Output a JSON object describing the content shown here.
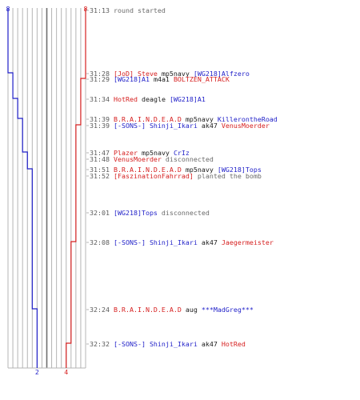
{
  "colors": {
    "team_a": "#1f1fc8",
    "team_b": "#d62020",
    "grid": "#b4b4b4",
    "center": "#6e6e6e",
    "time": "#5a5a5a",
    "neutral": "#6a6a6a",
    "black": "#1a1a1a"
  },
  "chart_data": {
    "type": "line",
    "start_counts": {
      "team_a": "8",
      "team_b": "8"
    },
    "end_counts": {
      "team_a": "2",
      "team_b": "4"
    },
    "team_a_steps": [
      8,
      7,
      6,
      5,
      4,
      3,
      2
    ],
    "team_b_steps": [
      8,
      7,
      6,
      5,
      4
    ],
    "events": [
      {
        "time": "31:13",
        "parts": [
          {
            "t": "round started",
            "c": "neutral"
          }
        ]
      },
      {
        "time": "31:28",
        "team_a_alive": 7,
        "parts": [
          {
            "t": "[JoD] Steve",
            "c": "team_b"
          },
          {
            "t": " mp5navy ",
            "c": "black"
          },
          {
            "t": "[WG218]Alfzero",
            "c": "team_a"
          }
        ]
      },
      {
        "time": "31:29",
        "team_b_alive": 7,
        "parts": [
          {
            "t": "[WG218]A1",
            "c": "team_a"
          },
          {
            "t": " m4a1 ",
            "c": "black"
          },
          {
            "t": "BOLTZEN_ATTACK",
            "c": "team_b"
          }
        ]
      },
      {
        "time": "31:34",
        "team_a_alive": 6,
        "parts": [
          {
            "t": "HotRed",
            "c": "team_b"
          },
          {
            "t": " deagle ",
            "c": "black"
          },
          {
            "t": "[WG218]A1",
            "c": "team_a"
          }
        ]
      },
      {
        "time": "31:39",
        "team_a_alive": 5,
        "parts": [
          {
            "t": "B.R.A.I.N.D.E.A.D",
            "c": "team_b"
          },
          {
            "t": " mp5navy ",
            "c": "black"
          },
          {
            "t": "KillerontheRoad",
            "c": "team_a"
          }
        ]
      },
      {
        "time": "31:39",
        "team_b_alive": 6,
        "parts": [
          {
            "t": "[-SONS-] Shinji_Ikari",
            "c": "team_a"
          },
          {
            "t": " ak47 ",
            "c": "black"
          },
          {
            "t": "VenusMoerder",
            "c": "team_b"
          }
        ]
      },
      {
        "time": "31:47",
        "team_a_alive": 4,
        "parts": [
          {
            "t": "Plazer",
            "c": "team_b"
          },
          {
            "t": " mp5navy ",
            "c": "black"
          },
          {
            "t": "CrIz",
            "c": "team_a"
          }
        ]
      },
      {
        "time": "31:48",
        "parts": [
          {
            "t": "VenusMoerder",
            "c": "team_b"
          },
          {
            "t": " disconnected",
            "c": "neutral"
          }
        ]
      },
      {
        "time": "31:51",
        "team_a_alive": 3,
        "parts": [
          {
            "t": "B.R.A.I.N.D.E.A.D",
            "c": "team_b"
          },
          {
            "t": " mp5navy ",
            "c": "black"
          },
          {
            "t": "[WG218]Tops",
            "c": "team_a"
          }
        ]
      },
      {
        "time": "31:52",
        "parts": [
          {
            "t": "[FaszinationFahrrad]",
            "c": "team_b"
          },
          {
            "t": " planted the bomb",
            "c": "neutral"
          }
        ]
      },
      {
        "time": "32:01",
        "parts": [
          {
            "t": "[WG218]Tops",
            "c": "team_a"
          },
          {
            "t": " disconnected",
            "c": "neutral"
          }
        ]
      },
      {
        "time": "32:08",
        "team_b_alive": 5,
        "parts": [
          {
            "t": "[-SONS-] Shinji_Ikari",
            "c": "team_a"
          },
          {
            "t": " ak47 ",
            "c": "black"
          },
          {
            "t": "Jaegermeister",
            "c": "team_b"
          }
        ]
      },
      {
        "time": "32:24",
        "team_a_alive": 2,
        "parts": [
          {
            "t": "B.R.A.I.N.D.E.A.D",
            "c": "team_b"
          },
          {
            "t": " aug ",
            "c": "black"
          },
          {
            "t": "***MadGreg***",
            "c": "team_a"
          }
        ]
      },
      {
        "time": "32:32",
        "team_b_alive": 4,
        "parts": [
          {
            "t": "[-SONS-] Shinji_Ikari",
            "c": "team_a"
          },
          {
            "t": " ak47 ",
            "c": "black"
          },
          {
            "t": "HotRed",
            "c": "team_b"
          }
        ]
      }
    ]
  }
}
